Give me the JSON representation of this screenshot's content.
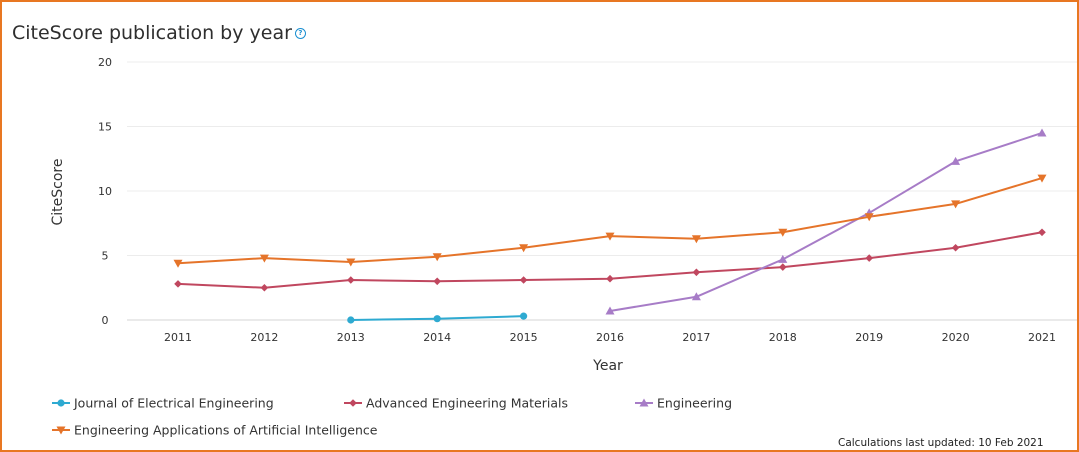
{
  "header": {
    "title": "CiteScore publication by year",
    "help_icon": "question-circle-icon"
  },
  "footer": {
    "updated": "Calculations last updated: 10 Feb 2021"
  },
  "chart_data": {
    "type": "line",
    "title": "CiteScore publication by year",
    "xlabel": "Year",
    "ylabel": "CiteScore",
    "x": [
      "2011",
      "2012",
      "2013",
      "2014",
      "2015",
      "2016",
      "2017",
      "2018",
      "2019",
      "2020",
      "2021"
    ],
    "xlabels": [
      "2011",
      "2012",
      "2013",
      "2014",
      "2015",
      "2016",
      "2017",
      "2018",
      "2019",
      "2020",
      "2021"
    ],
    "ylim": [
      0,
      20
    ],
    "yticks": [
      "0",
      "5",
      "10",
      "15",
      "20"
    ],
    "grid": true,
    "legend_position": "bottom-left",
    "series": [
      {
        "name": "Journal of Electrical Engineering",
        "color": "#2eaad1",
        "marker": "circle",
        "values": [
          null,
          null,
          0.0,
          0.1,
          0.3,
          null,
          null,
          null,
          null,
          null,
          null
        ]
      },
      {
        "name": "Advanced Engineering Materials",
        "color": "#c0475f",
        "marker": "diamond",
        "values": [
          2.8,
          2.5,
          3.1,
          3.0,
          3.1,
          3.2,
          3.7,
          4.1,
          4.8,
          5.6,
          6.8
        ]
      },
      {
        "name": "Engineering",
        "color": "#a77cc7",
        "marker": "triangle-up",
        "values": [
          null,
          null,
          null,
          null,
          null,
          0.7,
          1.8,
          4.7,
          8.3,
          12.3,
          14.5
        ]
      },
      {
        "name": "Engineering Applications of Artificial Intelligence",
        "color": "#e5742a",
        "marker": "triangle-down",
        "values": [
          4.4,
          4.8,
          4.5,
          4.9,
          5.6,
          6.5,
          6.3,
          6.8,
          8.0,
          9.0,
          11.0
        ]
      }
    ]
  }
}
